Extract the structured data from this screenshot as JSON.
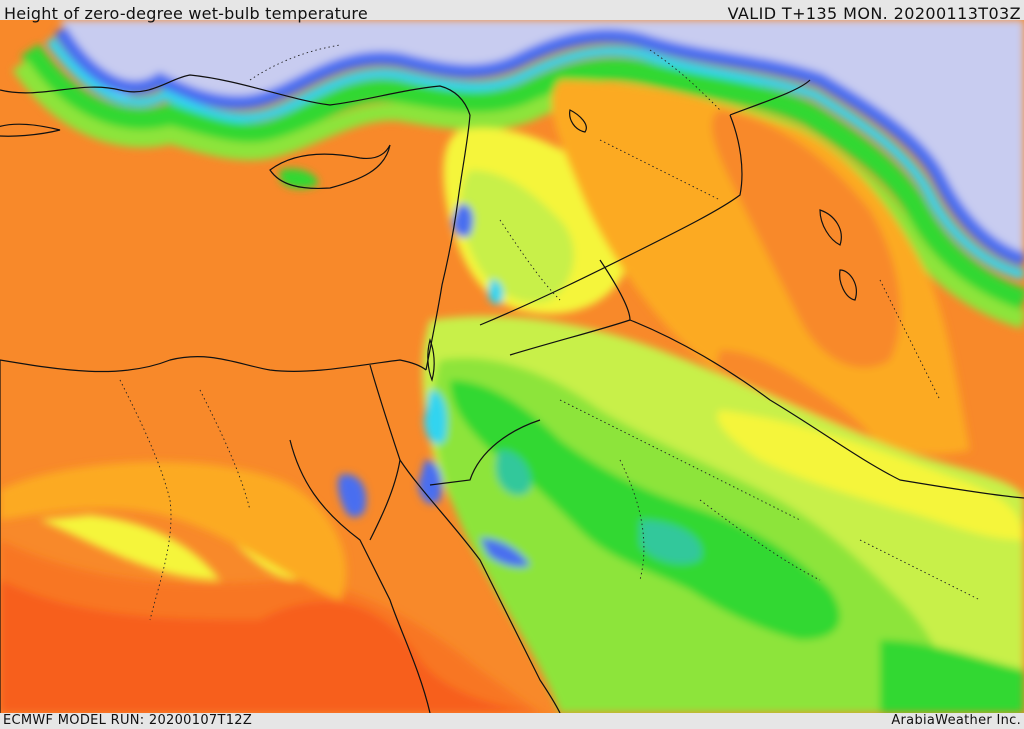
{
  "header": {
    "title": "Height of zero-degree wet-bulb temperature",
    "valid": "VALID T+135 MON. 20200113T03Z"
  },
  "footer": {
    "model_run": "ECMWF MODEL RUN: 20200107T12Z",
    "credit": "ArabiaWeather Inc."
  },
  "map": {
    "palette": {
      "deep_red": "#f54f1c",
      "orange_red": "#f86a22",
      "orange": "#f8892a",
      "amber": "#fcaa23",
      "yellow": "#f5f53a",
      "lime": "#c8f04a",
      "green": "#8de43a",
      "bright_green": "#33d833",
      "teal": "#33c89b",
      "cyan": "#33d4f0",
      "blue": "#4a6ef0",
      "lavender": "#c8ccf0",
      "border": "#111111"
    }
  }
}
